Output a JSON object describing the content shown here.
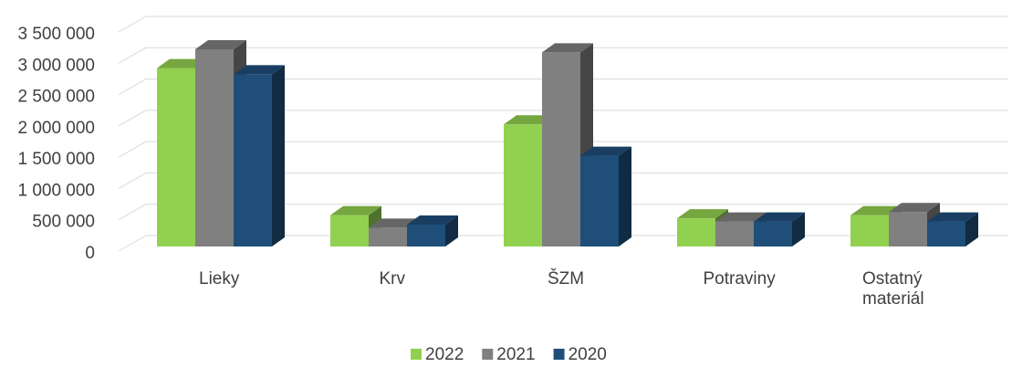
{
  "chart_data": {
    "type": "bar3d",
    "categories": [
      "Lieky",
      "Krv",
      "ŠZM",
      "Potraviny",
      "Ostatný materiál"
    ],
    "series": [
      {
        "name": "2022",
        "color": "#92d050",
        "values": [
          2850000,
          500000,
          1950000,
          450000,
          500000
        ]
      },
      {
        "name": "2021",
        "color": "#808080",
        "values": [
          3150000,
          300000,
          3100000,
          400000,
          550000
        ]
      },
      {
        "name": "2020",
        "color": "#1f4e79",
        "values": [
          2750000,
          350000,
          1450000,
          400000,
          400000
        ]
      }
    ],
    "ylim": [
      0,
      3500000
    ],
    "yticks": [
      0,
      {
        "value": 500000,
        "label": "500 000"
      },
      {
        "value": 1000000,
        "label": "1 000 000"
      },
      {
        "value": 1500000,
        "label": "1 500 000"
      },
      {
        "value": 2000000,
        "label": "2 000 000"
      },
      {
        "value": 2500000,
        "label": "2 500 000"
      },
      {
        "value": 3000000,
        "label": "3 000 000"
      },
      {
        "value": 3500000,
        "label": "3 500 000"
      }
    ],
    "grid": true,
    "legend": "bottom"
  }
}
